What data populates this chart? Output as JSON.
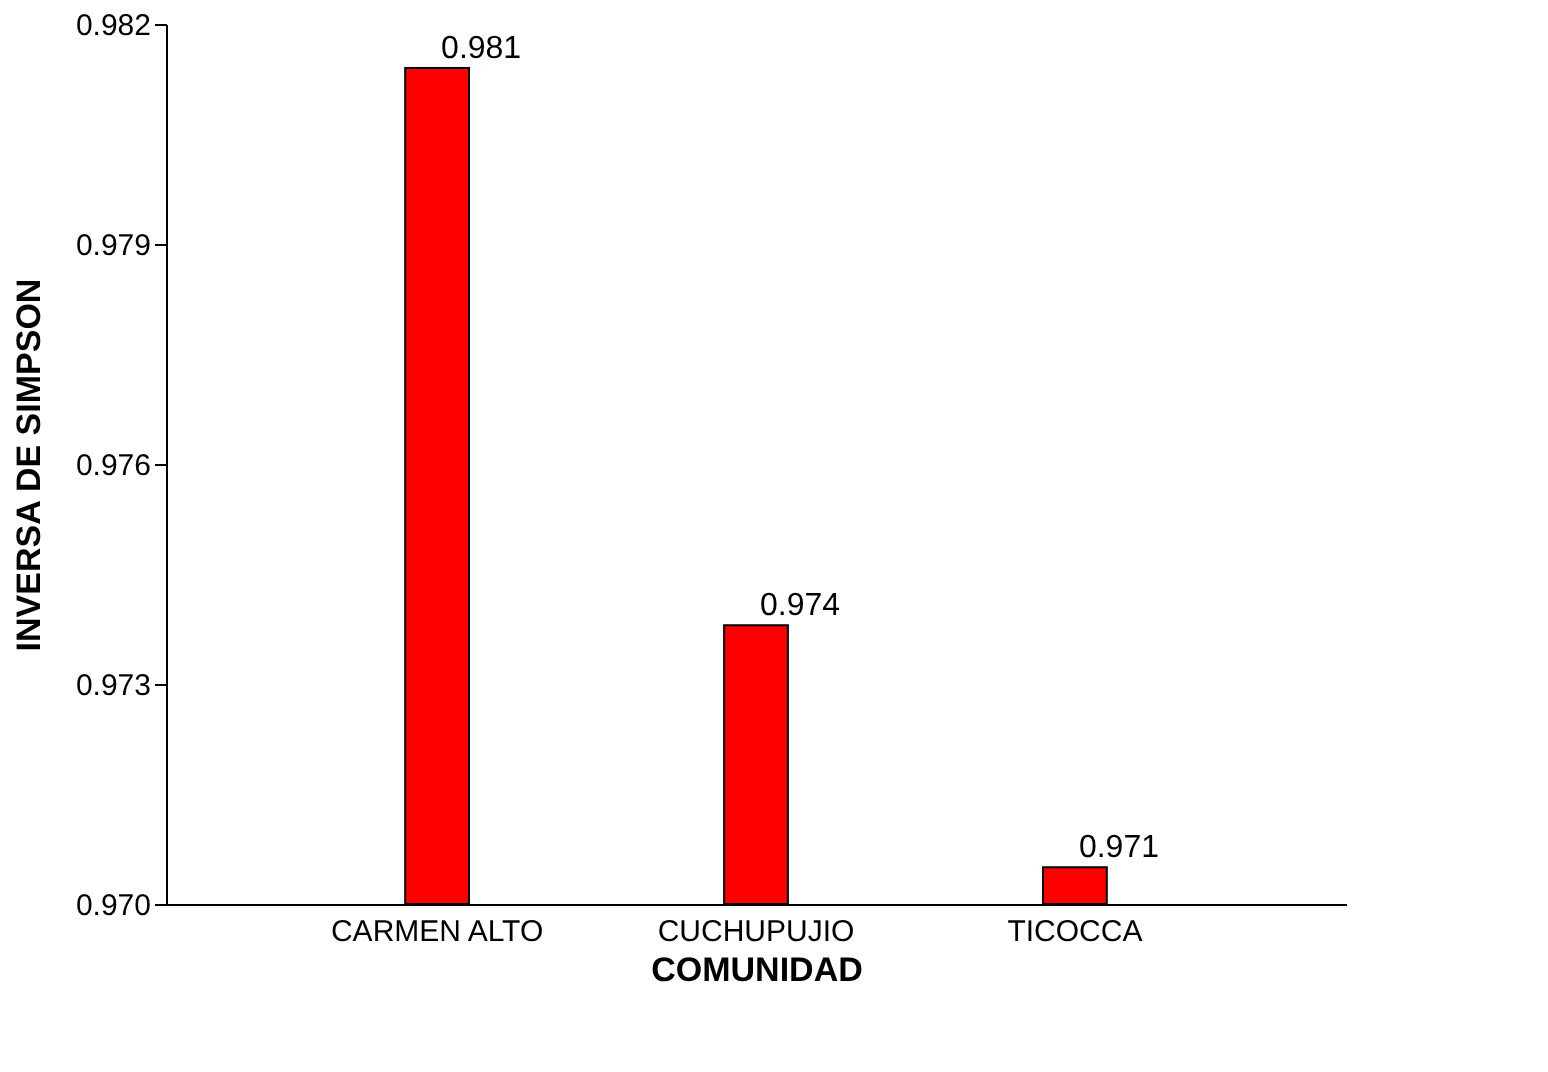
{
  "chart_data": {
    "type": "bar",
    "xlabel": "COMUNIDAD",
    "ylabel": "INVERSA DE SIMPSON",
    "categories": [
      "CARMEN ALTO",
      "CUCHUPUJIO",
      "TICOCCA"
    ],
    "values": [
      0.9814,
      0.9738,
      0.9705
    ],
    "value_labels": [
      "0.981",
      "0.974",
      "0.971"
    ],
    "color": "#ff0000",
    "ylim": [
      0.97,
      0.982
    ],
    "yticks": [
      {
        "value": 0.97,
        "label": "0.970"
      },
      {
        "value": 0.973,
        "label": "0.973"
      },
      {
        "value": 0.976,
        "label": "0.976"
      },
      {
        "value": 0.979,
        "label": "0.979"
      },
      {
        "value": 0.982,
        "label": "0.982"
      }
    ],
    "grid": false
  }
}
